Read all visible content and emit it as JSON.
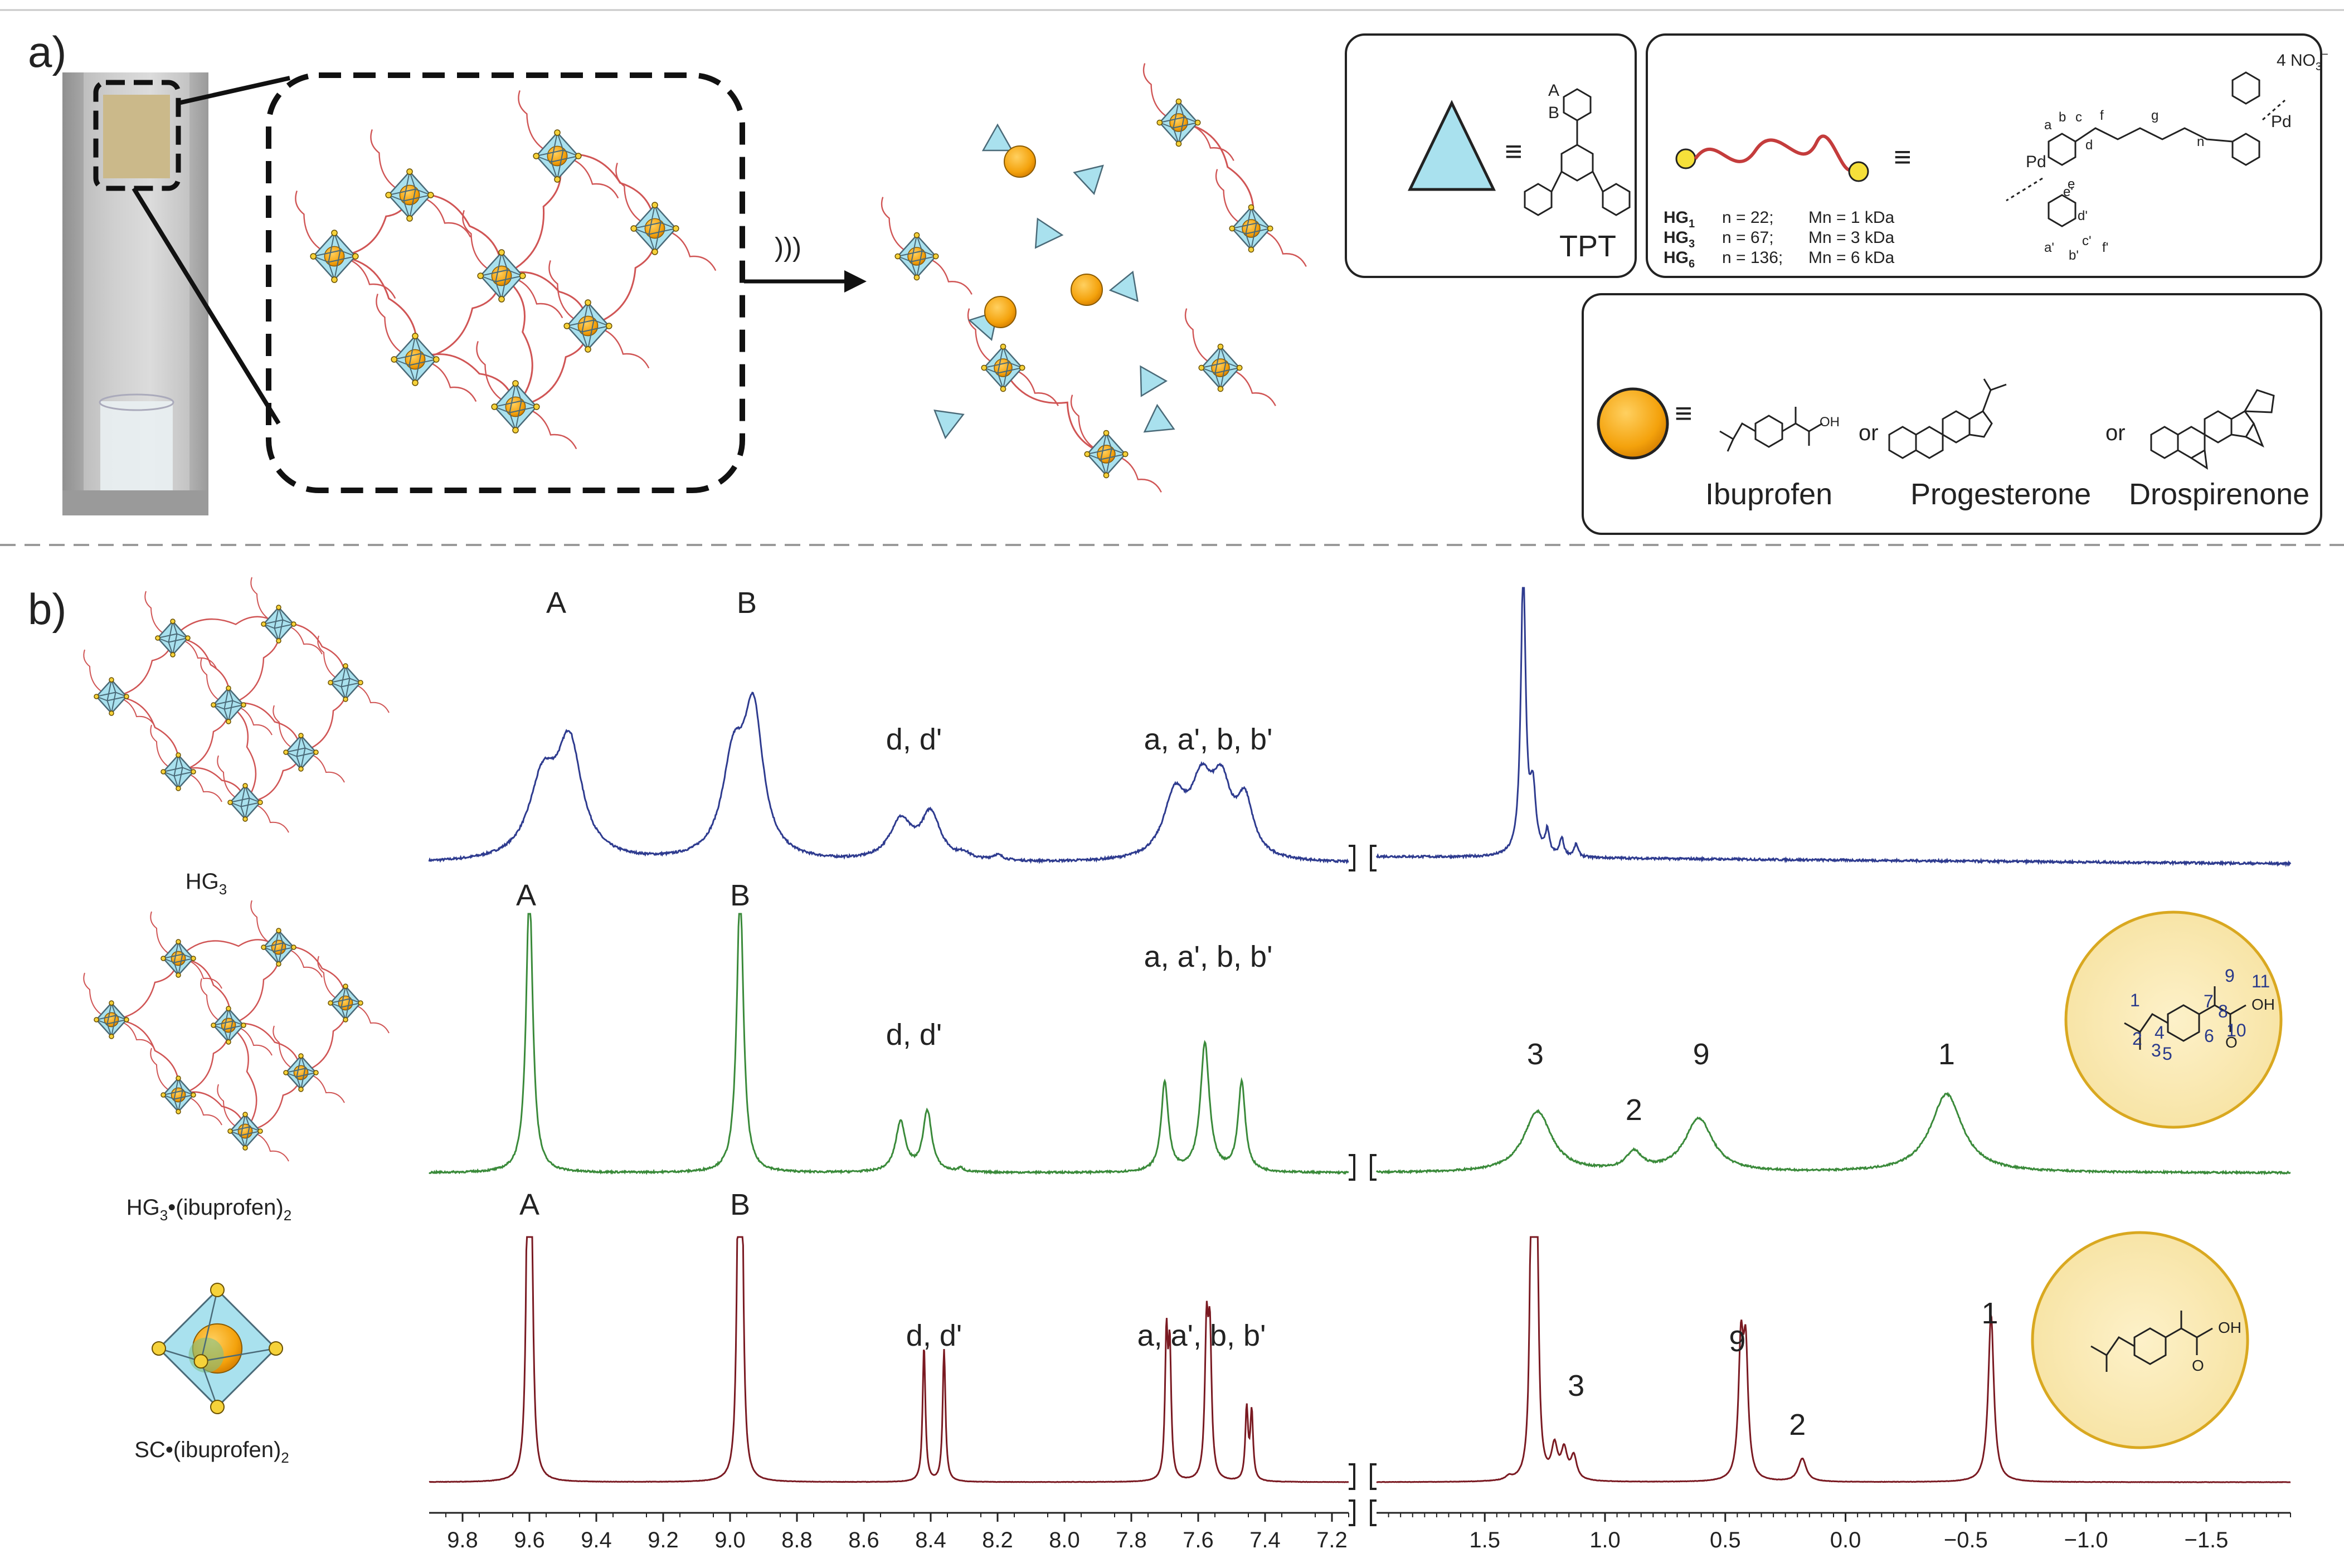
{
  "panel_a": {
    "label": "a)",
    "ultrasound_symbol": ")))",
    "legend_tpt": {
      "symbol": "≡",
      "atom_a": "A",
      "atom_b": "B",
      "name": "TPT"
    },
    "legend_hg": {
      "symbol": "≡",
      "rows": [
        {
          "name": "HG",
          "sub": "1",
          "n": "n = 22;",
          "mn": "Mn = 1 kDa"
        },
        {
          "name": "HG",
          "sub": "3",
          "n": "n = 67;",
          "mn": "Mn = 3 kDa"
        },
        {
          "name": "HG",
          "sub": "6",
          "n": "n = 136;",
          "mn": "Mn = 6 kDa"
        }
      ],
      "counterion": "4 NO",
      "counterion_sub": "3",
      "counterion_sup": "−",
      "proton_labels": [
        "a",
        "b",
        "c",
        "d",
        "e",
        "f",
        "g",
        "a'",
        "b'",
        "c'",
        "d'",
        "e'",
        "f'"
      ],
      "repeat": "n"
    },
    "legend_guest": {
      "symbol": "≡",
      "guests": [
        "Ibuprofen",
        "Progesterone",
        "Drospirenone"
      ],
      "or_word": "or"
    }
  },
  "panel_b": {
    "label": "b)",
    "samples": [
      {
        "name": "HG",
        "sub": "3",
        "suffix": ""
      },
      {
        "name": "HG",
        "sub": "3",
        "suffix": "•(ibuprofen)",
        "suffix_sub": "2"
      },
      {
        "name": "SC",
        "sub": "",
        "suffix": "•(ibuprofen)",
        "suffix_sub": "2"
      }
    ],
    "ibuprofen_numbering": [
      "1",
      "2",
      "3",
      "4",
      "5",
      "6",
      "7",
      "8",
      "9",
      "10",
      "11"
    ],
    "ibuprofen_oh": "OH",
    "ibuprofen_o": "O"
  },
  "chart_data": {
    "type": "line",
    "xlabel": "",
    "x_axis_broken": true,
    "x_reversed": true,
    "x_segments": [
      {
        "xlim": [
          9.9,
          7.15
        ],
        "ticks": [
          9.8,
          9.6,
          9.4,
          9.2,
          9.0,
          8.8,
          8.6,
          8.4,
          8.2,
          8.0,
          7.8,
          7.6,
          7.4,
          7.2
        ],
        "tick_labels": [
          "9.8",
          "9.6",
          "9.4",
          "9.2",
          "9.0",
          "8.8",
          "8.6",
          "8.4",
          "8.2",
          "8.0",
          "7.8",
          "7.6",
          "7.4",
          "7.2"
        ]
      },
      {
        "xlim": [
          1.95,
          -1.85
        ],
        "ticks": [
          1.5,
          1.0,
          0.5,
          0.0,
          -0.5,
          -1.0,
          -1.5
        ],
        "tick_labels": [
          "1.5",
          "1.0",
          "0.5",
          "0.0",
          "−0.5",
          "−1.0",
          "−1.5"
        ]
      }
    ],
    "series": [
      {
        "color": "#2e3b8f",
        "peaks": [
          {
            "x": 9.56,
            "h": 0.42,
            "w": 0.05
          },
          {
            "x": 9.48,
            "h": 0.62,
            "w": 0.045
          },
          {
            "x": 8.99,
            "h": 0.52,
            "w": 0.04
          },
          {
            "x": 8.93,
            "h": 0.78,
            "w": 0.035
          },
          {
            "x": 8.49,
            "h": 0.22,
            "w": 0.04
          },
          {
            "x": 8.4,
            "h": 0.26,
            "w": 0.035
          },
          {
            "x": 8.3,
            "h": 0.03,
            "w": 0.02
          },
          {
            "x": 8.2,
            "h": 0.03,
            "w": 0.02
          },
          {
            "x": 7.67,
            "h": 0.34,
            "w": 0.04
          },
          {
            "x": 7.59,
            "h": 0.38,
            "w": 0.04
          },
          {
            "x": 7.53,
            "h": 0.36,
            "w": 0.035
          },
          {
            "x": 7.46,
            "h": 0.3,
            "w": 0.03
          },
          {
            "x": 1.34,
            "h": 1.6,
            "w": 0.012
          },
          {
            "x": 1.3,
            "h": 0.35,
            "w": 0.015
          },
          {
            "x": 1.24,
            "h": 0.13,
            "w": 0.01
          },
          {
            "x": 1.18,
            "h": 0.1,
            "w": 0.01
          },
          {
            "x": 1.12,
            "h": 0.07,
            "w": 0.01
          }
        ],
        "baseline_slope": true,
        "noise": 0.012,
        "labels": [
          {
            "text": "A",
            "x": 9.52
          },
          {
            "text": "B",
            "x": 8.95
          },
          {
            "text": "d, d'",
            "x": 8.45
          },
          {
            "text": "a, a', b, b'",
            "x": 7.57
          }
        ]
      },
      {
        "color": "#3a8a3a",
        "peaks": [
          {
            "x": 9.6,
            "h": 1.6,
            "w": 0.012
          },
          {
            "x": 8.97,
            "h": 1.6,
            "w": 0.012
          },
          {
            "x": 8.49,
            "h": 0.28,
            "w": 0.018
          },
          {
            "x": 8.41,
            "h": 0.34,
            "w": 0.016
          },
          {
            "x": 8.31,
            "h": 0.02,
            "w": 0.01
          },
          {
            "x": 7.7,
            "h": 0.5,
            "w": 0.013
          },
          {
            "x": 7.58,
            "h": 0.72,
            "w": 0.016
          },
          {
            "x": 7.47,
            "h": 0.5,
            "w": 0.013
          },
          {
            "x": 1.28,
            "h": 0.34,
            "w": 0.07
          },
          {
            "x": 0.88,
            "h": 0.1,
            "w": 0.04
          },
          {
            "x": 0.61,
            "h": 0.3,
            "w": 0.07
          },
          {
            "x": -0.42,
            "h": 0.44,
            "w": 0.08
          }
        ],
        "noise": 0.01,
        "labels": [
          {
            "text": "A",
            "x": 9.61
          },
          {
            "text": "B",
            "x": 8.97
          },
          {
            "text": "d, d'",
            "x": 8.45
          },
          {
            "text": "a, a', b, b'",
            "x": 7.57
          },
          {
            "text": "3",
            "x": 1.29
          },
          {
            "text": "2",
            "x": 0.88
          },
          {
            "text": "9",
            "x": 0.6
          },
          {
            "text": "1",
            "x": -0.42
          }
        ]
      },
      {
        "color": "#7a1a22",
        "peaks": [
          {
            "x": 9.605,
            "h": 1.6,
            "w": 0.006
          },
          {
            "x": 9.595,
            "h": 1.6,
            "w": 0.006
          },
          {
            "x": 8.975,
            "h": 1.55,
            "w": 0.006
          },
          {
            "x": 8.965,
            "h": 1.55,
            "w": 0.006
          },
          {
            "x": 8.42,
            "h": 0.76,
            "w": 0.005
          },
          {
            "x": 8.36,
            "h": 0.74,
            "w": 0.005
          },
          {
            "x": 7.695,
            "h": 0.78,
            "w": 0.005
          },
          {
            "x": 7.685,
            "h": 0.7,
            "w": 0.005
          },
          {
            "x": 7.575,
            "h": 0.8,
            "w": 0.006
          },
          {
            "x": 7.565,
            "h": 0.76,
            "w": 0.006
          },
          {
            "x": 7.455,
            "h": 0.4,
            "w": 0.005
          },
          {
            "x": 7.44,
            "h": 0.38,
            "w": 0.005
          },
          {
            "x": 1.305,
            "h": 1.9,
            "w": 0.008
          },
          {
            "x": 1.285,
            "h": 1.9,
            "w": 0.008
          },
          {
            "x": 1.21,
            "h": 0.18,
            "w": 0.015
          },
          {
            "x": 1.17,
            "h": 0.16,
            "w": 0.015
          },
          {
            "x": 1.13,
            "h": 0.13,
            "w": 0.015
          },
          {
            "x": 1.4,
            "h": 0.02,
            "w": 0.015
          },
          {
            "x": 0.435,
            "h": 0.72,
            "w": 0.012
          },
          {
            "x": 0.415,
            "h": 0.68,
            "w": 0.012
          },
          {
            "x": 0.18,
            "h": 0.13,
            "w": 0.02
          },
          {
            "x": -0.605,
            "h": 0.94,
            "w": 0.014
          }
        ],
        "noise": 0.002,
        "labels": [
          {
            "text": "A",
            "x": 9.6
          },
          {
            "text": "B",
            "x": 8.97
          },
          {
            "text": "d, d'",
            "x": 8.39
          },
          {
            "text": "a, a', b, b'",
            "x": 7.59
          },
          {
            "text": "3",
            "x": 1.12
          },
          {
            "text": "9",
            "x": 0.45
          },
          {
            "text": "2",
            "x": 0.2
          },
          {
            "text": "1",
            "x": -0.6
          }
        ]
      }
    ]
  }
}
